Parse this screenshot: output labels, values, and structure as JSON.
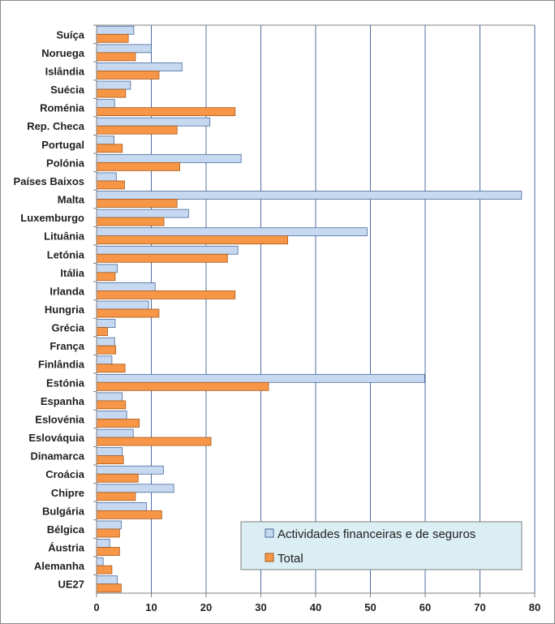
{
  "chart_data": {
    "type": "bar",
    "orientation": "horizontal",
    "categories": [
      "Suíça",
      "Noruega",
      "Islândia",
      "Suécia",
      "Roménia",
      "Rep. Checa",
      "Portugal",
      "Polónia",
      "Países Baixos",
      "Malta",
      "Luxemburgo",
      "Lituânia",
      "Letónia",
      "Itália",
      "Irlanda",
      "Hungria",
      "Grécia",
      "França",
      "Finlândia",
      "Estónia",
      "Espanha",
      "Eslovénia",
      "Eslováquia",
      "Dinamarca",
      "Croácia",
      "Chipre",
      "Bulgária",
      "Bélgica",
      "Áustria",
      "Alemanha",
      "UE27"
    ],
    "series": [
      {
        "name": "Actividades financeiras e de seguros",
        "color": "#c6d9f1",
        "stroke": "#4a6a9c",
        "values": [
          6.8,
          10,
          15.6,
          6.2,
          3.3,
          20.7,
          3.2,
          26.4,
          3.6,
          77.6,
          16.8,
          49.4,
          25.8,
          3.8,
          10.7,
          9.5,
          3.4,
          3.3,
          2.8,
          59.9,
          4.7,
          5.5,
          6.7,
          4.7,
          12.2,
          14.1,
          9.1,
          4.5,
          2.4,
          1.2,
          3.8
        ]
      },
      {
        "name": "Total",
        "color": "#f79646",
        "stroke": "#a85a1c",
        "values": [
          5.8,
          7.1,
          11.4,
          5.3,
          25.3,
          14.7,
          4.7,
          15.2,
          5.1,
          14.7,
          12.3,
          34.9,
          23.9,
          3.4,
          25.3,
          11.4,
          2.0,
          3.5,
          5.2,
          31.4,
          5.3,
          7.8,
          20.9,
          4.9,
          7.6,
          7.1,
          11.9,
          4.2,
          4.2,
          2.8,
          4.5
        ]
      }
    ],
    "x_ticks": [
      "0",
      "10",
      "20",
      "30",
      "40",
      "50",
      "60",
      "70",
      "80"
    ],
    "xlim": [
      0,
      80
    ],
    "grid": true,
    "legend_position": "bottom-right"
  }
}
